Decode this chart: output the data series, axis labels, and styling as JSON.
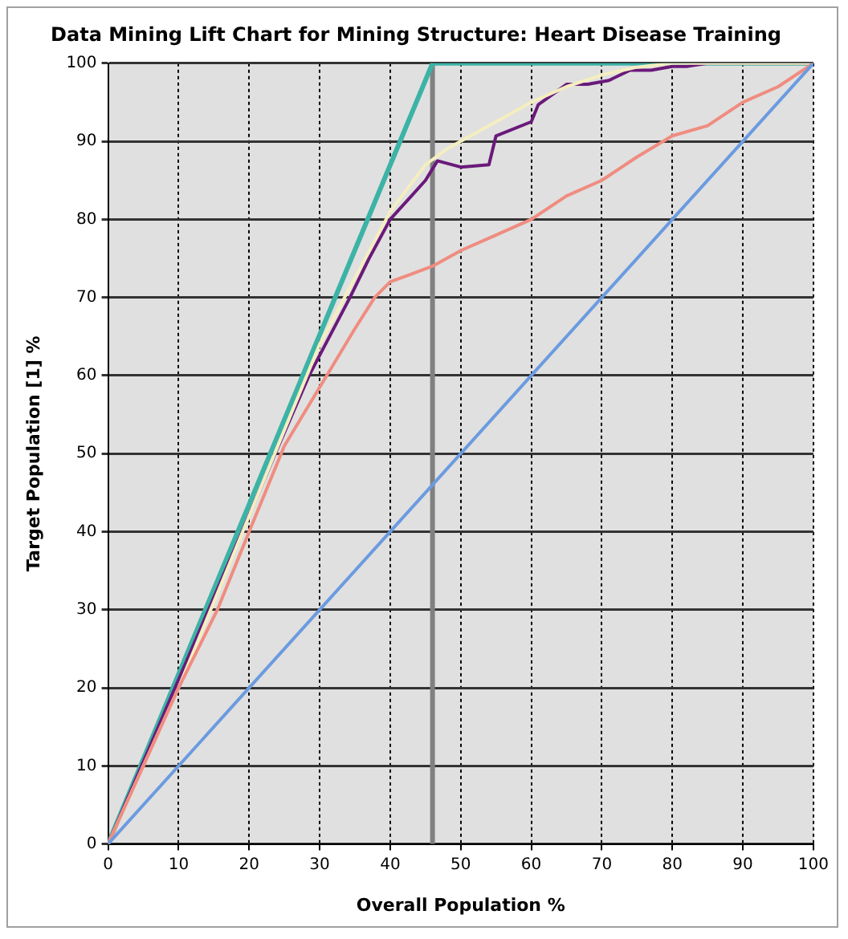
{
  "chart_data": {
    "type": "line",
    "title": "Data Mining Lift Chart for Mining Structure: Heart Disease Training",
    "xlabel": "Overall Population %",
    "ylabel": "Target Population [1] %",
    "xlim": [
      0,
      100
    ],
    "ylim": [
      0,
      100
    ],
    "xticks": [
      0,
      10,
      20,
      30,
      40,
      50,
      60,
      70,
      80,
      90,
      100
    ],
    "yticks": [
      0,
      10,
      20,
      30,
      40,
      50,
      60,
      70,
      80,
      90,
      100
    ],
    "grid": true,
    "legend": false,
    "marker": "none",
    "line_style": "solid",
    "ref_lines": [
      {
        "axis": "x",
        "value": 46,
        "color": "#808080"
      }
    ],
    "series": [
      {
        "color": "#6b9be0",
        "x": [
          0,
          100
        ],
        "values": [
          0,
          100
        ]
      },
      {
        "color": "#f08c80",
        "x": [
          0,
          5,
          10,
          15.5,
          20,
          25,
          31,
          35,
          37.8,
          40,
          46,
          50,
          55,
          60,
          65,
          70,
          75,
          80,
          85,
          90,
          95,
          100
        ],
        "values": [
          0,
          10,
          20,
          30,
          40,
          51,
          60,
          66,
          70,
          72,
          74,
          76,
          78,
          80,
          83,
          85,
          88,
          90.7,
          92,
          95,
          97,
          100
        ]
      },
      {
        "color": "#f4eec0",
        "x": [
          0,
          10,
          20,
          30,
          40,
          45,
          48,
          52,
          60,
          65,
          70,
          75,
          80,
          100
        ],
        "values": [
          0,
          20,
          42,
          64,
          81,
          87,
          89,
          91,
          95,
          97,
          98.5,
          99.5,
          100,
          100
        ]
      },
      {
        "color": "#6a1a7a",
        "x": [
          0,
          9.5,
          19,
          23.7,
          28.5,
          34.3,
          37,
          40,
          45,
          46.7,
          50,
          54,
          55,
          60,
          61,
          65,
          68,
          71,
          74,
          77,
          80,
          82,
          85,
          100
        ],
        "values": [
          0,
          20,
          40,
          50,
          60,
          70,
          75,
          80,
          85,
          87.5,
          86.7,
          87,
          90.7,
          92.5,
          94.7,
          97.3,
          97.3,
          97.8,
          99.1,
          99.1,
          99.6,
          99.6,
          100,
          100
        ]
      },
      {
        "color": "#3cb3a6",
        "x": [
          0,
          46,
          100
        ],
        "values": [
          0,
          100,
          100
        ]
      }
    ]
  }
}
